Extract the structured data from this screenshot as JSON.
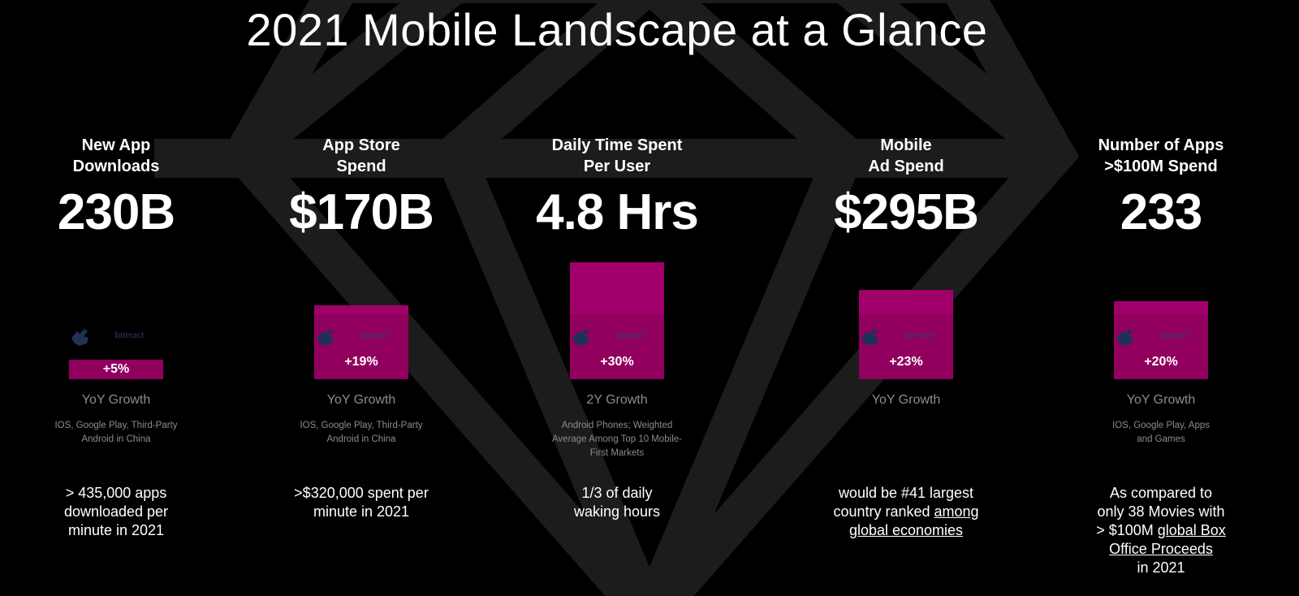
{
  "title": "2021 Mobile Landscape at a Glance",
  "interact_label": "Interact",
  "chart_data": {
    "type": "bar",
    "categories": [
      "New App Downloads",
      "App Store Spend",
      "Daily Time Spent Per User",
      "Mobile Ad Spend",
      "Number of Apps >$100M Spend"
    ],
    "values": [
      5,
      19,
      30,
      23,
      20
    ],
    "unit": "%",
    "colors": {
      "bar": "#92005f",
      "background": "#000000",
      "note": "#8c8c8c"
    }
  },
  "metrics": [
    {
      "heading": [
        "New App",
        "Downloads"
      ],
      "value": "230B",
      "growth_pct": 5,
      "growth_label": "+5%",
      "growth_caption": "YoY Growth",
      "note": [
        "IOS, Google Play, Third-Party",
        "Android in China"
      ],
      "fact": [
        "> 435,000 apps",
        "downloaded per",
        " minute in 2021"
      ]
    },
    {
      "heading": [
        "App Store",
        "Spend"
      ],
      "value": "$170B",
      "growth_pct": 19,
      "growth_label": "+19%",
      "growth_caption": "YoY Growth",
      "note": [
        "IOS, Google Play, Third-Party",
        "Android in China"
      ],
      "fact": [
        ">$320,000 spent per",
        "minute in 2021"
      ]
    },
    {
      "heading": [
        "Daily Time Spent",
        "Per User"
      ],
      "value": "4.8 Hrs",
      "growth_pct": 30,
      "growth_label": "+30%",
      "growth_caption": "2Y Growth",
      "note": [
        "Android Phones; Weighted",
        "Average Among Top 10 Mobile-",
        "First  Markets"
      ],
      "fact": [
        "1/3 of daily",
        "waking hours"
      ]
    },
    {
      "heading": [
        "Mobile",
        "Ad Spend"
      ],
      "value": "$295B",
      "growth_pct": 23,
      "growth_label": "+23%",
      "growth_caption": "YoY Growth",
      "note": [],
      "fact_plain_1": "would be #41 largest",
      "fact_plain_2": "country ranked ",
      "fact_link_1": "among ",
      "fact_link_2": "global economies"
    },
    {
      "heading": [
        "Number of Apps",
        ">$100M Spend"
      ],
      "value": "233",
      "growth_pct": 20,
      "growth_label": "+20%",
      "growth_caption": "YoY Growth",
      "note": [
        "IOS, Google Play, Apps",
        "and Games"
      ],
      "fact_plain_1": "As compared to",
      "fact_plain_2": "only 38 Movies with",
      "fact_plain_3": "> $100M ",
      "fact_link_1": "global Box ",
      "fact_link_2": "Office Proceeds",
      "fact_plain_4": "in 2021"
    }
  ]
}
